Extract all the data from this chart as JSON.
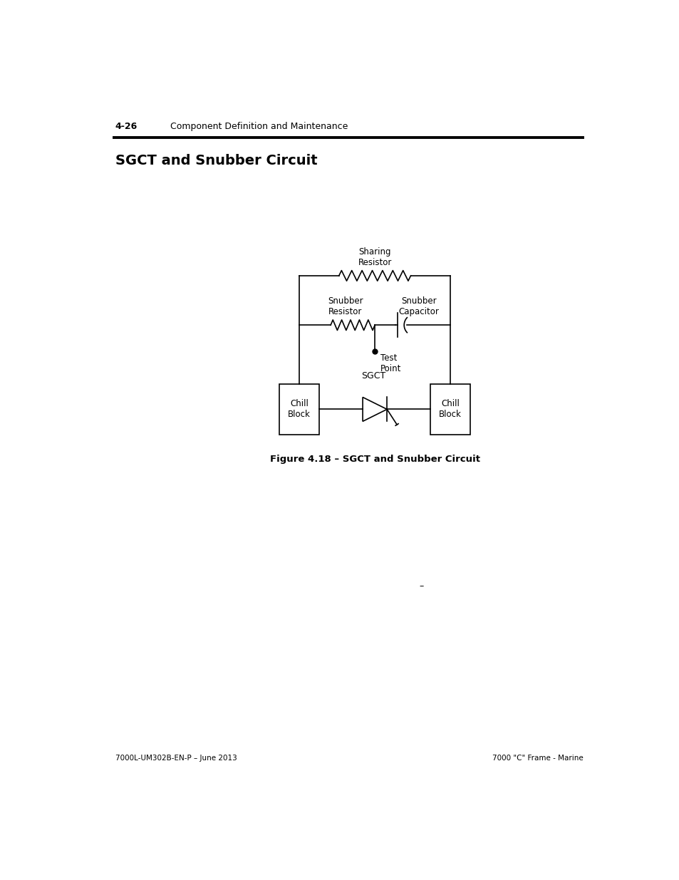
{
  "page_number": "4-26",
  "header_text": "Component Definition and Maintenance",
  "section_title": "SGCT and Snubber Circuit",
  "figure_caption": "Figure 4.18 – SGCT and Snubber Circuit",
  "footer_left": "7000L-UM302B-EN-P – June 2013",
  "footer_right": "7000 \"C\" Frame - Marine",
  "bg_color": "#ffffff",
  "line_color": "#000000"
}
